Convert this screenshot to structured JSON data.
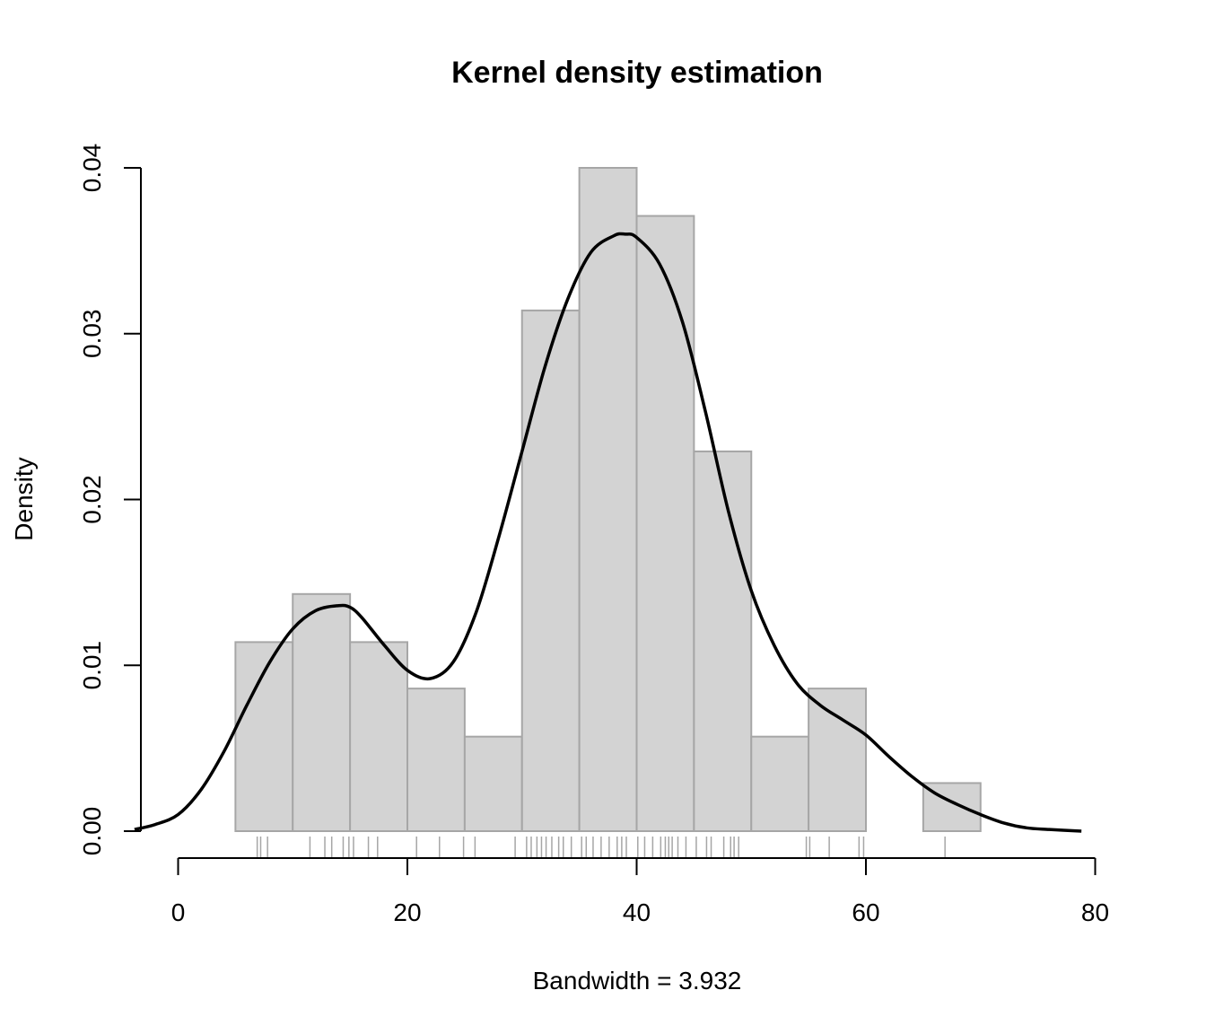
{
  "chart_data": {
    "type": "bar",
    "title": "Kernel density estimation",
    "xlabel": "Bandwidth = 3.932",
    "ylabel": "Density",
    "xlim": [
      -4,
      80
    ],
    "ylim": [
      0,
      0.04
    ],
    "x_ticks": [
      "0",
      "20",
      "40",
      "60",
      "80"
    ],
    "y_ticks": [
      "0.00",
      "0.01",
      "0.02",
      "0.03",
      "0.04"
    ],
    "histogram": {
      "bins": [
        {
          "from": 5,
          "to": 10,
          "density": 0.0114
        },
        {
          "from": 10,
          "to": 15,
          "density": 0.0143
        },
        {
          "from": 15,
          "to": 20,
          "density": 0.0114
        },
        {
          "from": 20,
          "to": 25,
          "density": 0.0086
        },
        {
          "from": 25,
          "to": 30,
          "density": 0.0057
        },
        {
          "from": 30,
          "to": 35,
          "density": 0.0314
        },
        {
          "from": 35,
          "to": 40,
          "density": 0.04
        },
        {
          "from": 40,
          "to": 45,
          "density": 0.0371
        },
        {
          "from": 45,
          "to": 50,
          "density": 0.0229
        },
        {
          "from": 50,
          "to": 55,
          "density": 0.0057
        },
        {
          "from": 55,
          "to": 60,
          "density": 0.0086
        },
        {
          "from": 60,
          "to": 65,
          "density": 0
        },
        {
          "from": 65,
          "to": 70,
          "density": 0.0029
        }
      ]
    },
    "density_curve": {
      "x": [
        -3.8,
        -2,
        0,
        2,
        4,
        6,
        8,
        10,
        12,
        14,
        15,
        16,
        18,
        20,
        22,
        24,
        26,
        28,
        30,
        32,
        34,
        36,
        38,
        39,
        40,
        42,
        44,
        46,
        48,
        50,
        52,
        54,
        56,
        58,
        60,
        62,
        64,
        66,
        68,
        70,
        72,
        74,
        76,
        78.8
      ],
      "y": [
        0.0001,
        0.0004,
        0.001,
        0.0025,
        0.0048,
        0.0076,
        0.0102,
        0.0122,
        0.0133,
        0.0136,
        0.0135,
        0.0129,
        0.0112,
        0.0097,
        0.0092,
        0.0102,
        0.0132,
        0.0178,
        0.0229,
        0.028,
        0.0321,
        0.0349,
        0.0359,
        0.036,
        0.0358,
        0.0342,
        0.0307,
        0.0253,
        0.0193,
        0.0145,
        0.0112,
        0.0089,
        0.0076,
        0.0067,
        0.0058,
        0.0045,
        0.0033,
        0.0023,
        0.0016,
        0.001,
        0.0005,
        0.0002,
        0.0001,
        0
      ]
    },
    "rug": [
      6.9,
      7.2,
      7.8,
      11.5,
      12.8,
      13.4,
      14.4,
      14.9,
      15.3,
      16.6,
      17.4,
      20.8,
      22.8,
      24.9,
      25.9,
      29.4,
      30.4,
      30.8,
      31.3,
      31.7,
      32.1,
      32.6,
      33.2,
      33.6,
      34.3,
      35.2,
      35.6,
      36.2,
      36.9,
      37.6,
      38.3,
      38.7,
      39.1,
      40.1,
      40.7,
      41.4,
      42.1,
      42.5,
      42.8,
      43.1,
      43.6,
      44.3,
      45.2,
      46.1,
      46.5,
      47.6,
      48.2,
      48.5,
      48.9,
      54.8,
      55.1,
      56.8,
      59.4,
      59.8,
      66.9
    ]
  }
}
